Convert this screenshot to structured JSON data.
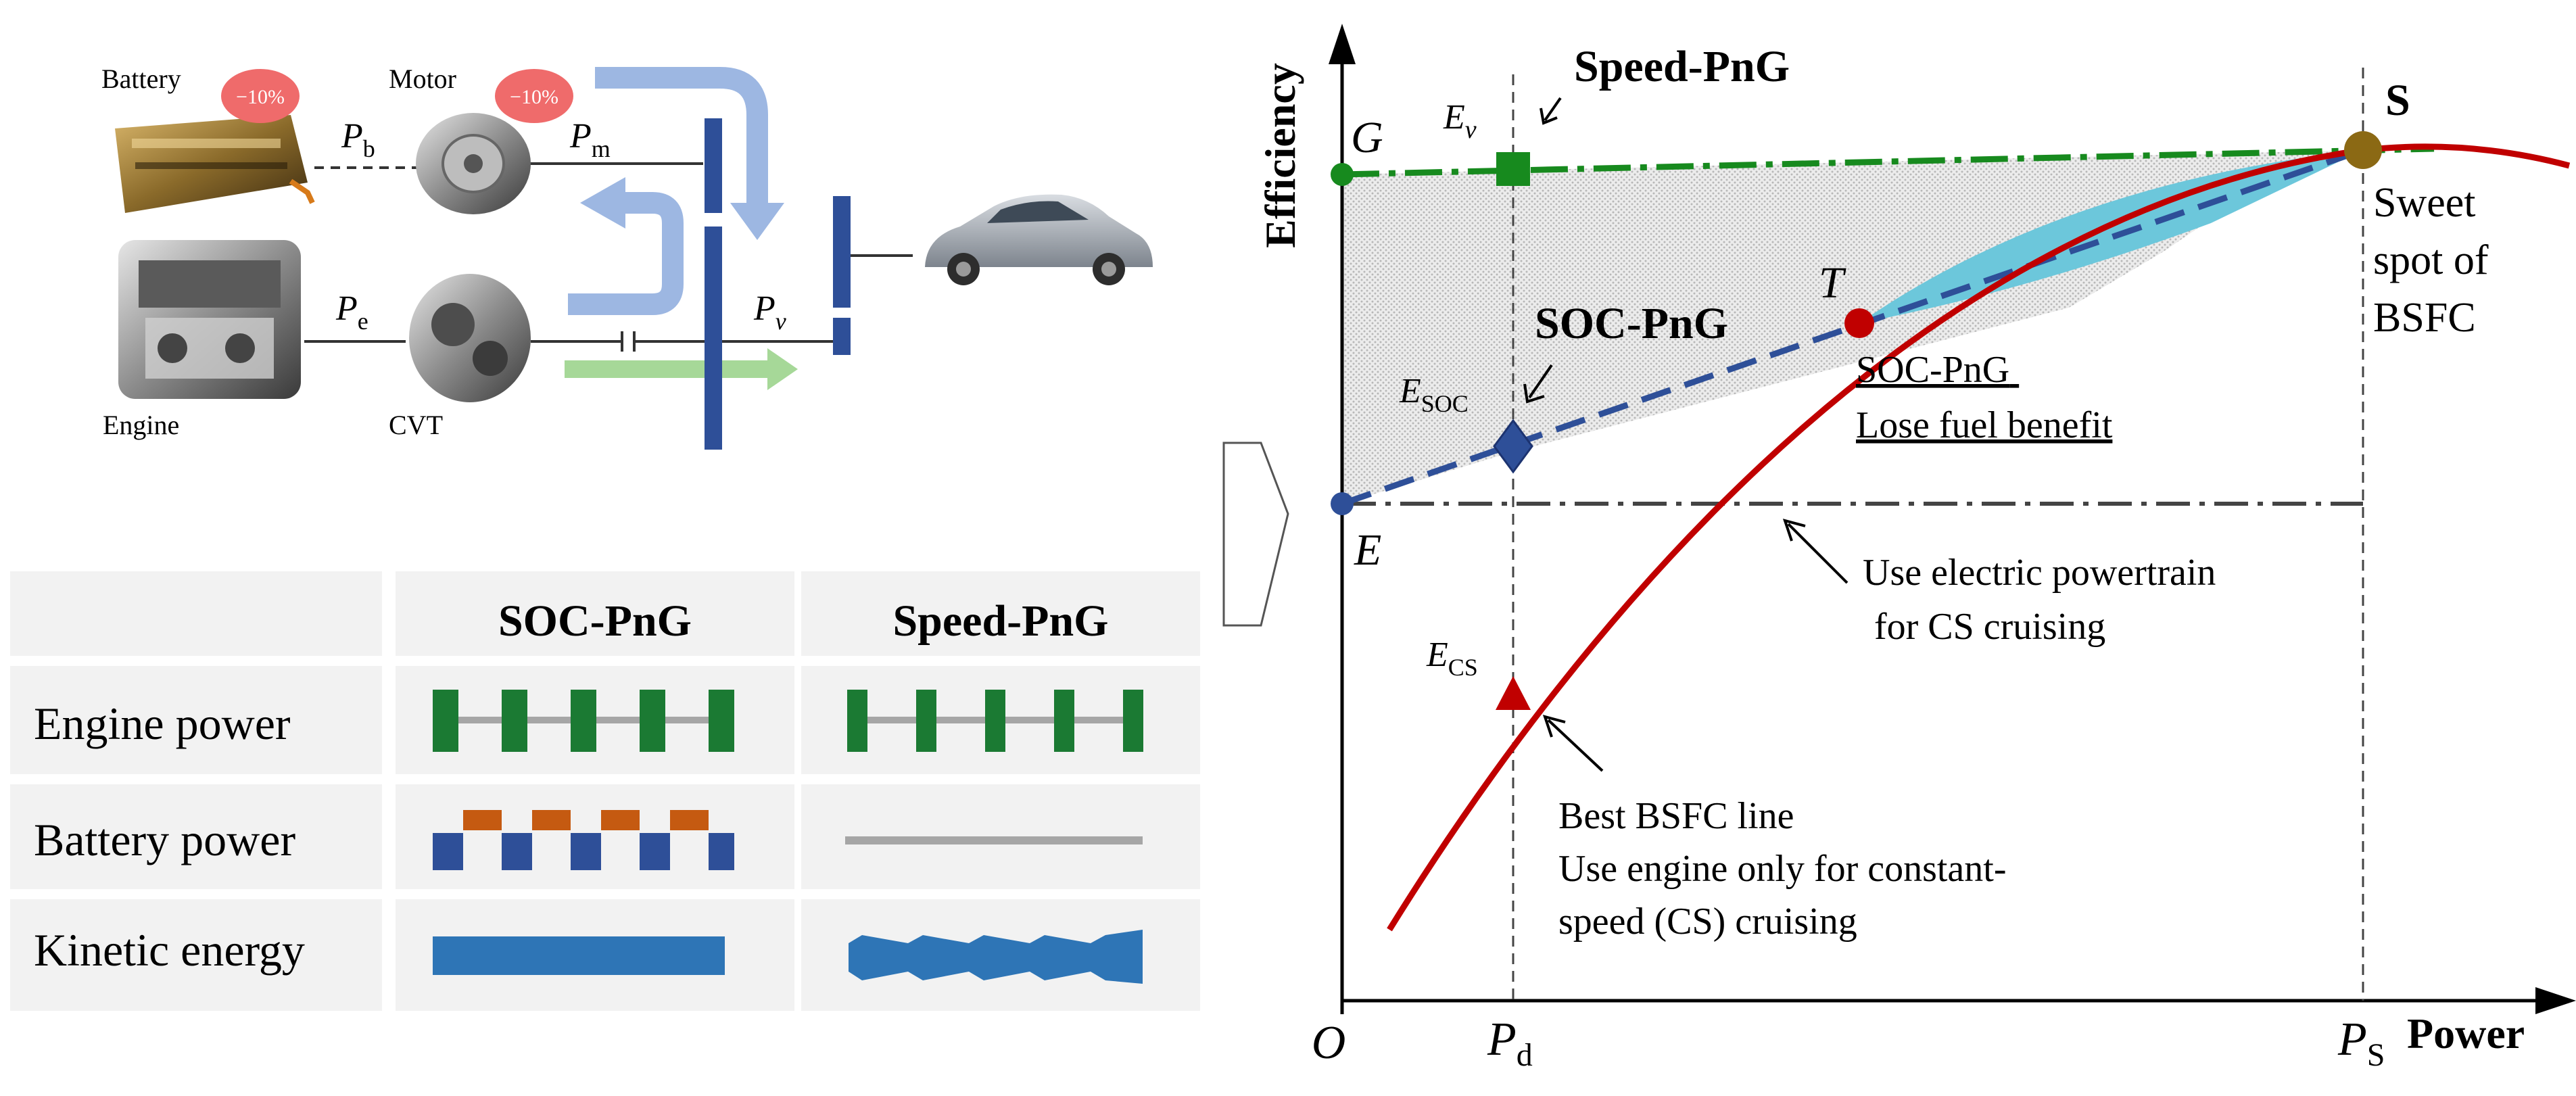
{
  "powertrain": {
    "battery_label": "Battery",
    "motor_label": "Motor",
    "engine_label": "Engine",
    "cvt_label": "CVT",
    "battery_badge": "−10%",
    "motor_badge": "−10%",
    "pb_main": "P",
    "pb_sub": "b",
    "pm_main": "P",
    "pm_sub": "m",
    "pe_main": "P",
    "pe_sub": "e",
    "pv_main": "P",
    "pv_sub": "v"
  },
  "table": {
    "col1_header": "SOC-PnG",
    "col2_header": "Speed-PnG",
    "rows": [
      "Engine power",
      "Battery power",
      "Kinetic energy"
    ]
  },
  "chart": {
    "ylabel": "Efficiency",
    "xlabel": "Power",
    "origin": "O",
    "pd_main": "P",
    "pd_sub": "d",
    "ps_main": "P",
    "ps_sub": "S",
    "g_label": "G",
    "e_label": "E",
    "s_label": "S",
    "t_label": "T",
    "ev_main": "E",
    "ev_sub": "v",
    "esoc_main": "E",
    "esoc_sub": "SOC",
    "ecs_main": "E",
    "ecs_sub": "CS",
    "speed_png": "Speed-PnG",
    "soc_png": "SOC-PnG",
    "sweet_spot": [
      "Sweet",
      "spot of",
      "BSFC"
    ],
    "lose_fuel": [
      "SOC-PnG",
      "Lose fuel benefit"
    ],
    "electric_note": [
      "Use electric powertrain",
      "for CS cruising"
    ],
    "bsfc_note": [
      "Best BSFC line",
      "Use engine only for constant-",
      "speed (CS) cruising"
    ]
  },
  "colors": {
    "green": "#178a1e",
    "blue": "#2e4f98",
    "red": "#c00000",
    "cyan": "#6cc7db",
    "olive": "#8b6914",
    "arrow_blue": "#9db7e2",
    "arrow_green": "#a6d898",
    "badge": "#ef6b6b",
    "bar_green": "#1b7a33",
    "bar_orange": "#c55a11",
    "bar_blue": "#2e75b6",
    "grey": "#a6a6a6"
  }
}
